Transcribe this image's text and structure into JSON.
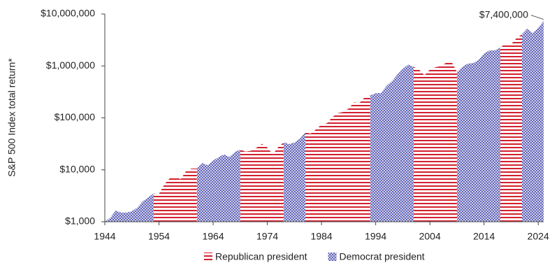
{
  "chart_data": {
    "type": "area",
    "y_label": "S&P 500 Index total return*",
    "log_scale": true,
    "x": [
      1944,
      1945,
      1946,
      1947,
      1948,
      1949,
      1950,
      1951,
      1952,
      1953,
      1954,
      1955,
      1956,
      1957,
      1958,
      1959,
      1960,
      1961,
      1962,
      1963,
      1964,
      1965,
      1966,
      1967,
      1968,
      1969,
      1970,
      1971,
      1972,
      1973,
      1974,
      1975,
      1976,
      1977,
      1978,
      1979,
      1980,
      1981,
      1982,
      1983,
      1984,
      1985,
      1986,
      1987,
      1988,
      1989,
      1990,
      1991,
      1992,
      1993,
      1994,
      1995,
      1996,
      1997,
      1998,
      1999,
      2000,
      2001,
      2002,
      2003,
      2004,
      2005,
      2006,
      2007,
      2008,
      2009,
      2010,
      2011,
      2012,
      2013,
      2014,
      2015,
      2016,
      2017,
      2018,
      2019,
      2020,
      2021,
      2022,
      2023,
      2024,
      2025
    ],
    "series": [
      {
        "name": "Republican president",
        "color": "#d3202f",
        "pattern": "stripes",
        "values": [
          null,
          null,
          null,
          null,
          null,
          null,
          null,
          null,
          null,
          3478,
          3444,
          5257,
          6916,
          7369,
          6574,
          9426,
          10555,
          10604,
          null,
          null,
          null,
          null,
          null,
          null,
          null,
          24467,
          22386,
          23281,
          26610,
          31659,
          27018,
          19867,
          27258,
          33756,
          null,
          null,
          null,
          52359,
          49787,
          60484,
          74104,
          78746,
          103700,
          123063,
          129530,
          151050,
          198910,
          192740,
          251450,
          270600,
          null,
          null,
          null,
          null,
          null,
          null,
          null,
          962890,
          848450,
          660940,
          850530,
          943080,
          989380,
          1145650,
          1208610,
          761470,
          null,
          null,
          null,
          null,
          null,
          null,
          null,
          2242610,
          2732200,
          2612480,
          3435130,
          4067310,
          null,
          null,
          null,
          null
        ]
      },
      {
        "name": "Democrat president",
        "color": "#5b5db5",
        "pattern": "crosshatch",
        "values": [
          1000,
          1197,
          1633,
          1501,
          1502,
          1585,
          1883,
          2480,
          2937,
          3478,
          null,
          null,
          null,
          null,
          null,
          null,
          null,
          10604,
          13457,
          12282,
          15083,
          17567,
          19755,
          17767,
          22028,
          24467,
          null,
          null,
          null,
          null,
          null,
          null,
          null,
          33756,
          31331,
          33387,
          39542,
          52359,
          null,
          null,
          null,
          null,
          null,
          null,
          null,
          null,
          null,
          null,
          null,
          270600,
          297790,
          301720,
          415090,
          510380,
          680630,
          875170,
          1059300,
          962890,
          null,
          null,
          null,
          null,
          null,
          null,
          null,
          761470,
          962970,
          1108040,
          1131470,
          1312600,
          1737760,
          1975700,
          2003060,
          2242610,
          null,
          null,
          null,
          4067310,
          5234880,
          4286840,
          5413860,
          7400000
        ]
      }
    ],
    "xlim": [
      1944,
      2025
    ],
    "xticks": [
      1944,
      1954,
      1964,
      1974,
      1984,
      1994,
      2004,
      2014,
      2024
    ],
    "ylim": [
      1000,
      10000000
    ],
    "yticks": [
      {
        "value": 1000,
        "label": "$1,000"
      },
      {
        "value": 10000,
        "label": "$10,000"
      },
      {
        "value": 100000,
        "label": "$100,000"
      },
      {
        "value": 1000000,
        "label": "$1,000,000"
      },
      {
        "value": 10000000,
        "label": "$10,000,000"
      }
    ],
    "annotations": [
      {
        "text": "$7,400,000",
        "x": 2025,
        "y": 7400000
      }
    ],
    "legend": "bottom"
  }
}
